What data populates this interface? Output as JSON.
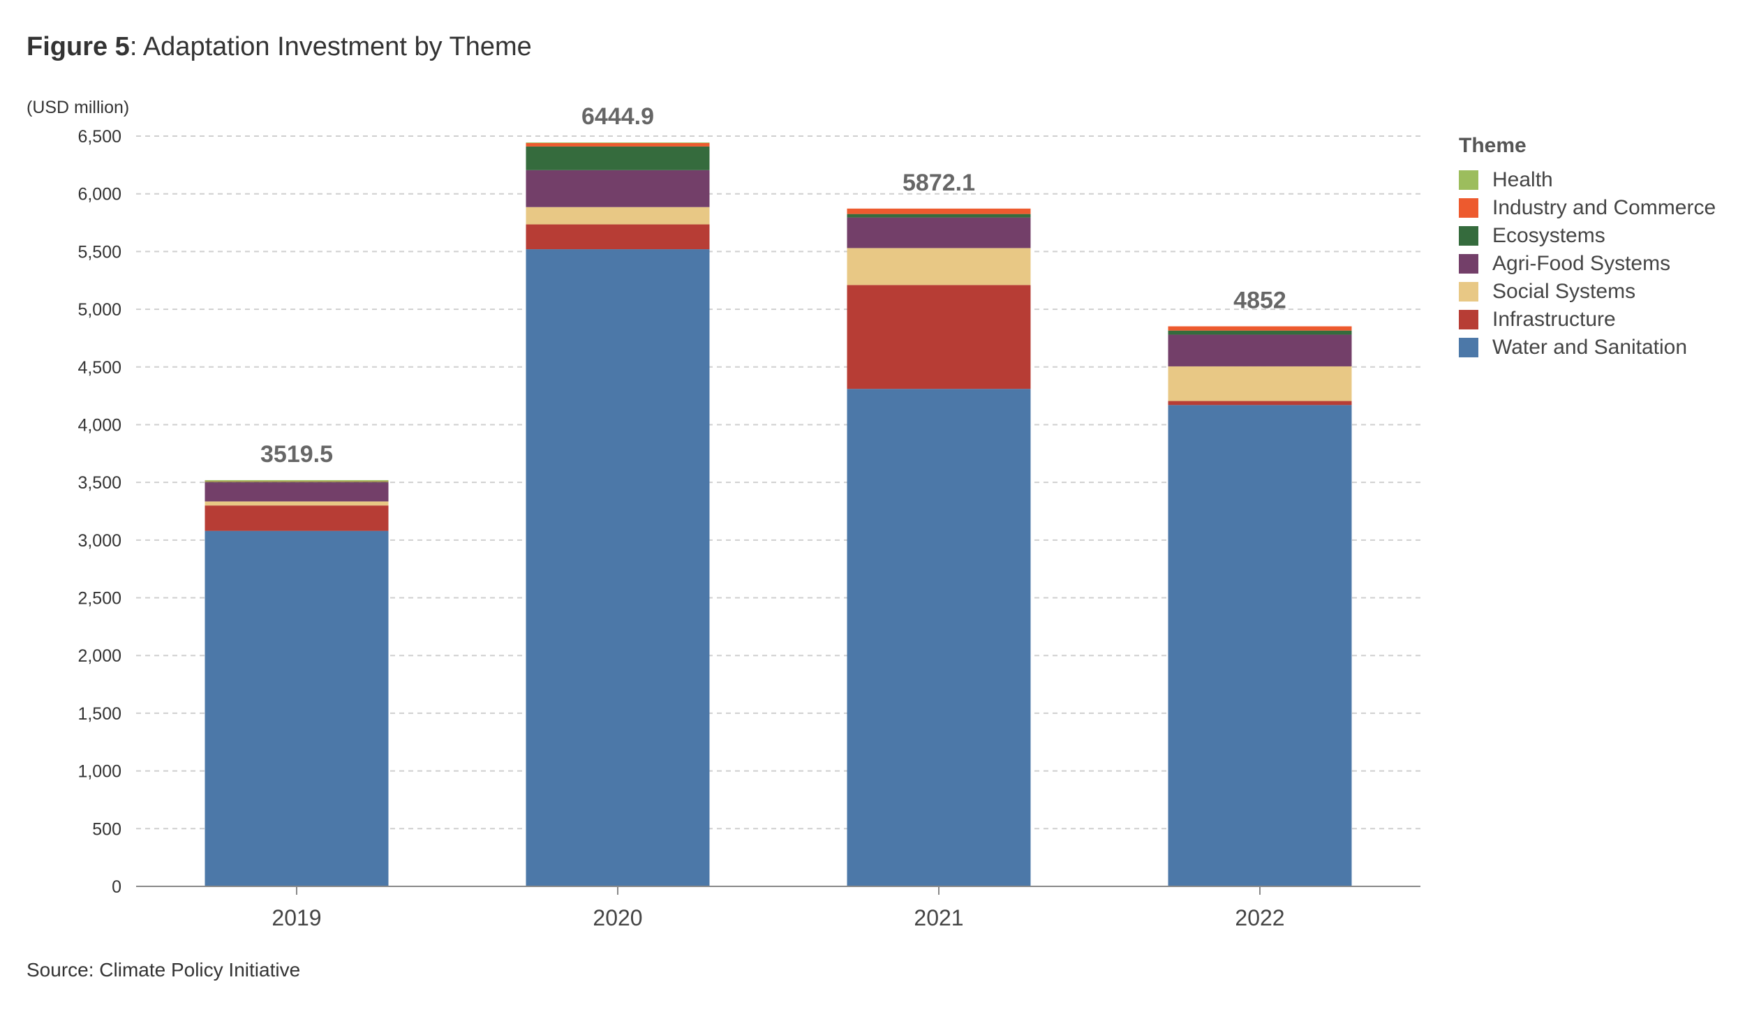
{
  "figure": {
    "label": "Figure 5",
    "title_rest": ": Adaptation Investment by Theme"
  },
  "unit_label": "(USD million)",
  "source": "Source: Climate Policy Initiative",
  "legend": {
    "title": "Theme"
  },
  "chart_data": {
    "type": "bar",
    "stacked": true,
    "title": "Figure 5: Adaptation Investment by Theme",
    "ylabel": "(USD million)",
    "xlabel": "",
    "categories": [
      "2019",
      "2020",
      "2021",
      "2022"
    ],
    "ylim": [
      0,
      6500
    ],
    "yticks": [
      0,
      500,
      1000,
      1500,
      2000,
      2500,
      3000,
      3500,
      4000,
      4500,
      5000,
      5500,
      6000,
      6500
    ],
    "ytick_labels": [
      "0",
      "500",
      "1,000",
      "1,500",
      "2,000",
      "2,500",
      "3,000",
      "3,500",
      "4,000",
      "4,500",
      "5,000",
      "5,500",
      "6,000",
      "6,500"
    ],
    "totals": [
      3519.5,
      6444.9,
      5872.1,
      4852
    ],
    "total_labels": [
      "3519.5",
      "6444.9",
      "5872.1",
      "4852"
    ],
    "grid": true,
    "legend_position": "right",
    "series": [
      {
        "name": "Water and Sanitation",
        "color": "#4c78a8",
        "values": [
          3080,
          5520,
          4310,
          4170
        ]
      },
      {
        "name": "Infrastructure",
        "color": "#b73d35",
        "values": [
          220,
          215,
          900,
          35
        ]
      },
      {
        "name": "Social Systems",
        "color": "#e8c885",
        "values": [
          35,
          150,
          320,
          300
        ]
      },
      {
        "name": "Agri-Food Systems",
        "color": "#733f69",
        "values": [
          165,
          320,
          265,
          275
        ]
      },
      {
        "name": "Ecosystems",
        "color": "#356b3d",
        "values": [
          5,
          205,
          30,
          35
        ]
      },
      {
        "name": "Industry and Commerce",
        "color": "#ed5a2e",
        "values": [
          4,
          30,
          47,
          37
        ]
      },
      {
        "name": "Health",
        "color": "#9cbd5d",
        "values": [
          10.5,
          4.9,
          0.1,
          0
        ]
      }
    ],
    "legend_order": [
      "Health",
      "Industry and Commerce",
      "Ecosystems",
      "Agri-Food Systems",
      "Social Systems",
      "Infrastructure",
      "Water and Sanitation"
    ]
  }
}
